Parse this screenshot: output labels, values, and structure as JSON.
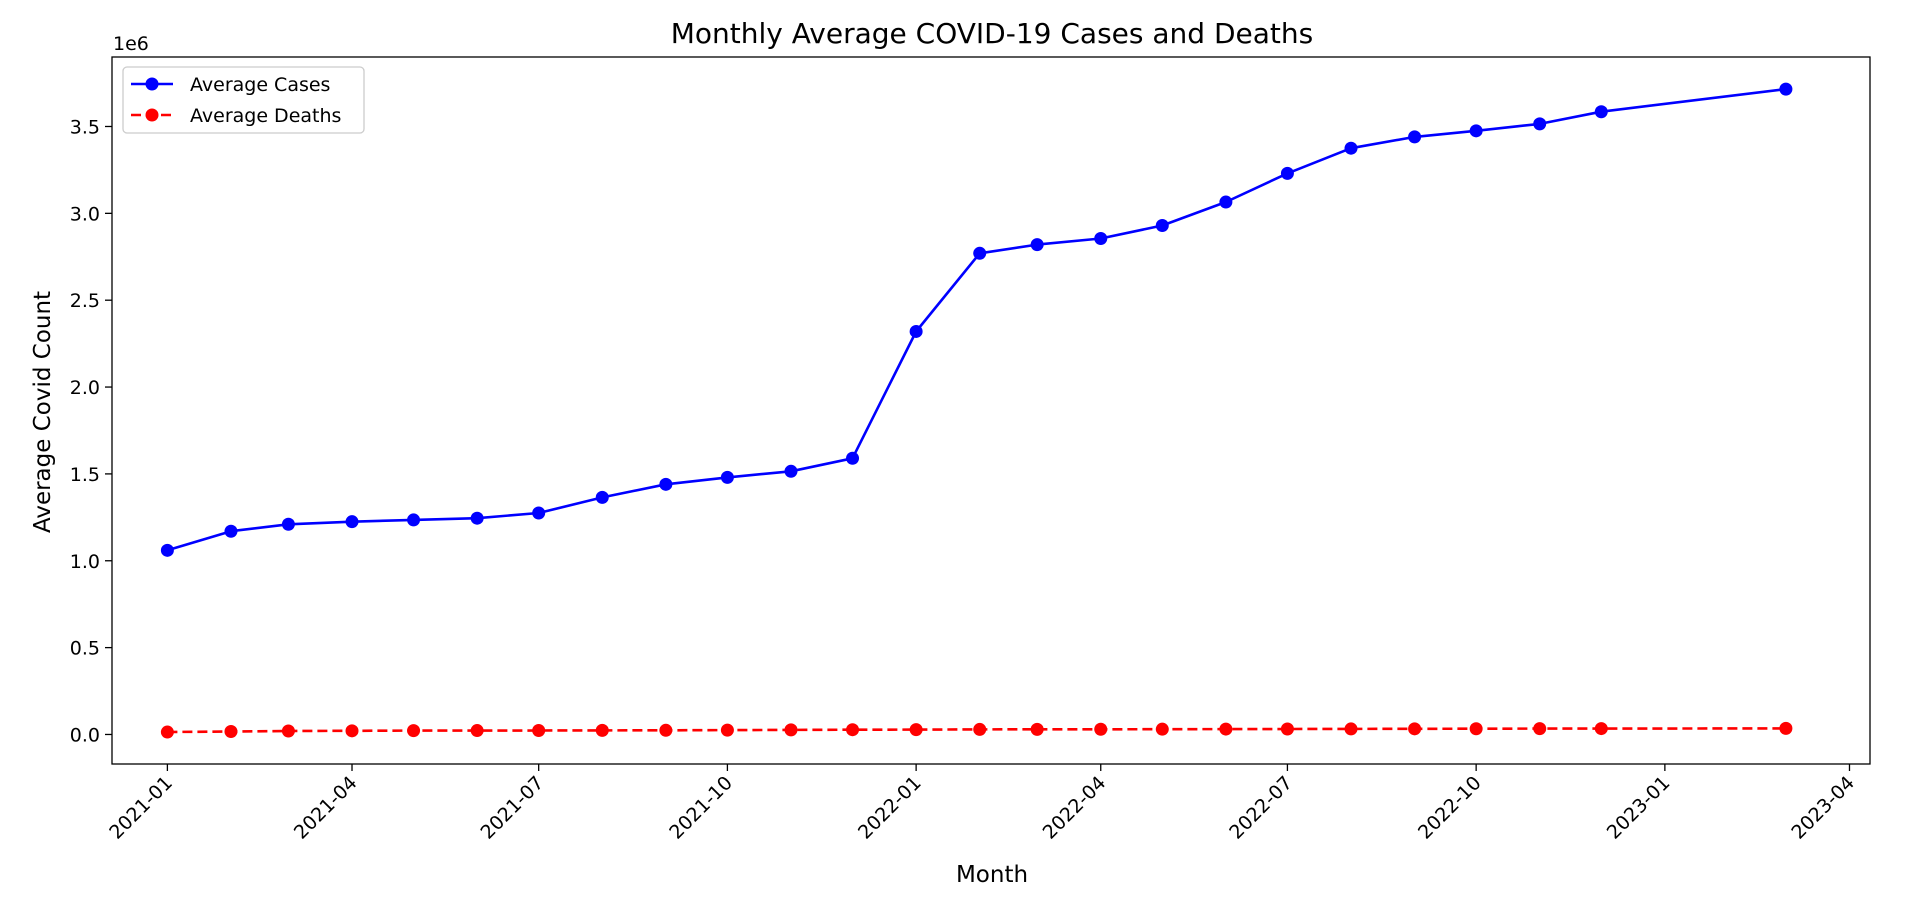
{
  "chart_data": {
    "type": "line",
    "title": "Monthly Average COVID-19 Cases and Deaths",
    "xlabel": "Month",
    "ylabel": "Average Covid Count",
    "y_offset_label": "1e6",
    "y_scale": 1000000,
    "ylim": [
      -170000,
      3900000
    ],
    "xlim": [
      "2020-12-05",
      "2023-04-11"
    ],
    "grid": false,
    "legend_position": "upper-left",
    "x_ticks": [
      "2021-01",
      "2021-04",
      "2021-07",
      "2021-10",
      "2022-01",
      "2022-04",
      "2022-07",
      "2022-10",
      "2023-01",
      "2023-04"
    ],
    "y_ticks": [
      "0.0",
      "0.5",
      "1.0",
      "1.5",
      "2.0",
      "2.5",
      "3.0",
      "3.5"
    ],
    "x": [
      "2021-01-01",
      "2021-02-01",
      "2021-03-01",
      "2021-04-01",
      "2021-05-01",
      "2021-06-01",
      "2021-07-01",
      "2021-08-01",
      "2021-09-01",
      "2021-10-01",
      "2021-11-01",
      "2021-12-01",
      "2022-01-01",
      "2022-02-01",
      "2022-03-01",
      "2022-04-01",
      "2022-05-01",
      "2022-06-01",
      "2022-07-01",
      "2022-08-01",
      "2022-09-01",
      "2022-10-01",
      "2022-11-01",
      "2022-12-01",
      "2023-03-01"
    ],
    "series": [
      {
        "name": "Average Cases",
        "color": "#0000ff",
        "line_style": "solid",
        "marker": "circle",
        "values": [
          1060000,
          1170000,
          1210000,
          1225000,
          1235000,
          1245000,
          1275000,
          1365000,
          1440000,
          1480000,
          1515000,
          1590000,
          2320000,
          2770000,
          2820000,
          2855000,
          2930000,
          3065000,
          3230000,
          3375000,
          3440000,
          3475000,
          3515000,
          3585000,
          3715000
        ]
      },
      {
        "name": "Average Deaths",
        "color": "#ff0000",
        "line_style": "dashed",
        "marker": "circle",
        "values": [
          14000,
          17000,
          20000,
          21000,
          22000,
          22500,
          23000,
          23500,
          24000,
          25000,
          26500,
          27500,
          28000,
          29000,
          29500,
          30000,
          30500,
          31000,
          31500,
          32000,
          32500,
          33000,
          33500,
          34000,
          35000
        ]
      }
    ]
  }
}
